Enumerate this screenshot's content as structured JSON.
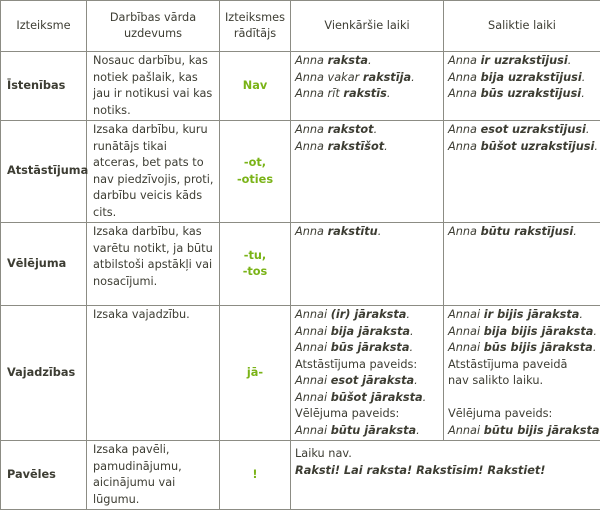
{
  "colors": {
    "text": "#3d3d33",
    "accent_green": "#7ab317",
    "border": "#8c8c84"
  },
  "headers": [
    "Izteiksme",
    "Darbības vārda uzdevums",
    "Izteiksmes rādītājs",
    "Vienkāršie laiki",
    "Saliktie laiki"
  ],
  "rows": [
    {
      "mood": "Īstenības",
      "description": "Nosauc darbību, kas notiek pašlaik, kas jau ir notikusi vai kas notiks.",
      "marker": [
        "Nav"
      ],
      "simple": [
        [
          [
            "Anna ",
            "i"
          ],
          [
            "raksta",
            "bi"
          ],
          [
            ".",
            "i"
          ]
        ],
        [
          [
            "Anna vakar ",
            "i"
          ],
          [
            "rakstīja",
            "bi"
          ],
          [
            ".",
            "i"
          ]
        ],
        [
          [
            "Anna rīt ",
            "i"
          ],
          [
            "rakstīs",
            "bi"
          ],
          [
            ".",
            "i"
          ]
        ]
      ],
      "compound": [
        [
          [
            "Anna ",
            "i"
          ],
          [
            "ir uzrakstījusi",
            "bi"
          ],
          [
            ".",
            "i"
          ]
        ],
        [
          [
            "Anna ",
            "i"
          ],
          [
            "bija uzrakstījusi",
            "bi"
          ],
          [
            ".",
            "i"
          ]
        ],
        [
          [
            "Anna ",
            "i"
          ],
          [
            "būs uzrakstījusi",
            "bi"
          ],
          [
            ".",
            "i"
          ]
        ]
      ]
    },
    {
      "mood": "Atstāstījuma",
      "description": "Izsaka darbību, kuru runātājs tikai atceras, bet pats to nav piedzīvojis, proti, darbību veicis kāds cits.",
      "marker": [
        "-ot,",
        "-oties"
      ],
      "simple": [
        [
          [
            "Anna ",
            "i"
          ],
          [
            "rakstot",
            "bi"
          ],
          [
            ".",
            "i"
          ]
        ],
        [
          [
            "Anna ",
            "i"
          ],
          [
            "rakstīšot",
            "bi"
          ],
          [
            ".",
            "i"
          ]
        ]
      ],
      "compound": [
        [
          [
            "Anna ",
            "i"
          ],
          [
            "esot uzrakstījusi",
            "bi"
          ],
          [
            ".",
            "i"
          ]
        ],
        [
          [
            "Anna ",
            "i"
          ],
          [
            "būšot uzrakstījusi",
            "bi"
          ],
          [
            ".",
            "i"
          ]
        ]
      ]
    },
    {
      "mood": "Vēlējuma",
      "description": "Izsaka darbību, kas varētu notikt, ja būtu atbilstoši apstākļi vai nosacījumi.",
      "marker": [
        "-tu,",
        "-tos"
      ],
      "simple": [
        [
          [
            "Anna ",
            "i"
          ],
          [
            "rakstītu",
            "bi"
          ],
          [
            ".",
            "i"
          ]
        ]
      ],
      "compound": [
        [
          [
            "Anna ",
            "i"
          ],
          [
            "būtu rakstījusi",
            "bi"
          ],
          [
            ".",
            "i"
          ]
        ]
      ]
    },
    {
      "mood": "Vajadzības",
      "description": "Izsaka vajadzību.",
      "marker": [
        "jā-"
      ],
      "simple": [
        [
          [
            "Annai ",
            "i"
          ],
          [
            "(ir) jāraksta",
            "bi"
          ],
          [
            ".",
            "i"
          ]
        ],
        [
          [
            "Annai ",
            "i"
          ],
          [
            "bija jāraksta",
            "bi"
          ],
          [
            ".",
            "i"
          ]
        ],
        [
          [
            "Annai ",
            "i"
          ],
          [
            "būs jāraksta",
            "bi"
          ],
          [
            ".",
            "i"
          ]
        ],
        [
          [
            "Atstāstījuma paveids:",
            ""
          ]
        ],
        [
          [
            "Annai ",
            "i"
          ],
          [
            "esot jāraksta",
            "bi"
          ],
          [
            ".",
            "i"
          ]
        ],
        [
          [
            "Annai ",
            "i"
          ],
          [
            "būšot jāraksta",
            "bi"
          ],
          [
            ".",
            "i"
          ]
        ],
        [
          [
            "Vēlējuma paveids:",
            ""
          ]
        ],
        [
          [
            "Annai ",
            "i"
          ],
          [
            "būtu jāraksta",
            "bi"
          ],
          [
            ".",
            "i"
          ]
        ]
      ],
      "compound": [
        [
          [
            "Annai ",
            "i"
          ],
          [
            "ir bijis jāraksta",
            "bi"
          ],
          [
            ".",
            "i"
          ]
        ],
        [
          [
            "Annai ",
            "i"
          ],
          [
            "bija bijis jāraksta",
            "bi"
          ],
          [
            ".",
            "i"
          ]
        ],
        [
          [
            "Annai ",
            "i"
          ],
          [
            "būs bijis jāraksta",
            "bi"
          ],
          [
            ".",
            "i"
          ]
        ],
        [
          [
            "Atstāstījuma paveidā",
            ""
          ]
        ],
        [
          [
            "nav salikto laiku.",
            ""
          ]
        ],
        [
          [
            " ",
            ""
          ]
        ],
        [
          [
            "Vēlējuma paveids:",
            ""
          ]
        ],
        [
          [
            "Annai ",
            "i"
          ],
          [
            "būtu bijis jāraksta",
            "bi"
          ],
          [
            ".",
            "i"
          ]
        ]
      ]
    },
    {
      "mood": "Pavēles",
      "description": "Izsaka pavēli, pamudinājumu, aicinājumu vai lūgumu.",
      "marker": [
        "!"
      ],
      "merged": [
        [
          [
            "Laiku nav.",
            ""
          ]
        ],
        [
          [
            "Raksti! Lai raksta! Rakstīsim! Rakstiet!",
            "bi"
          ]
        ]
      ]
    }
  ]
}
